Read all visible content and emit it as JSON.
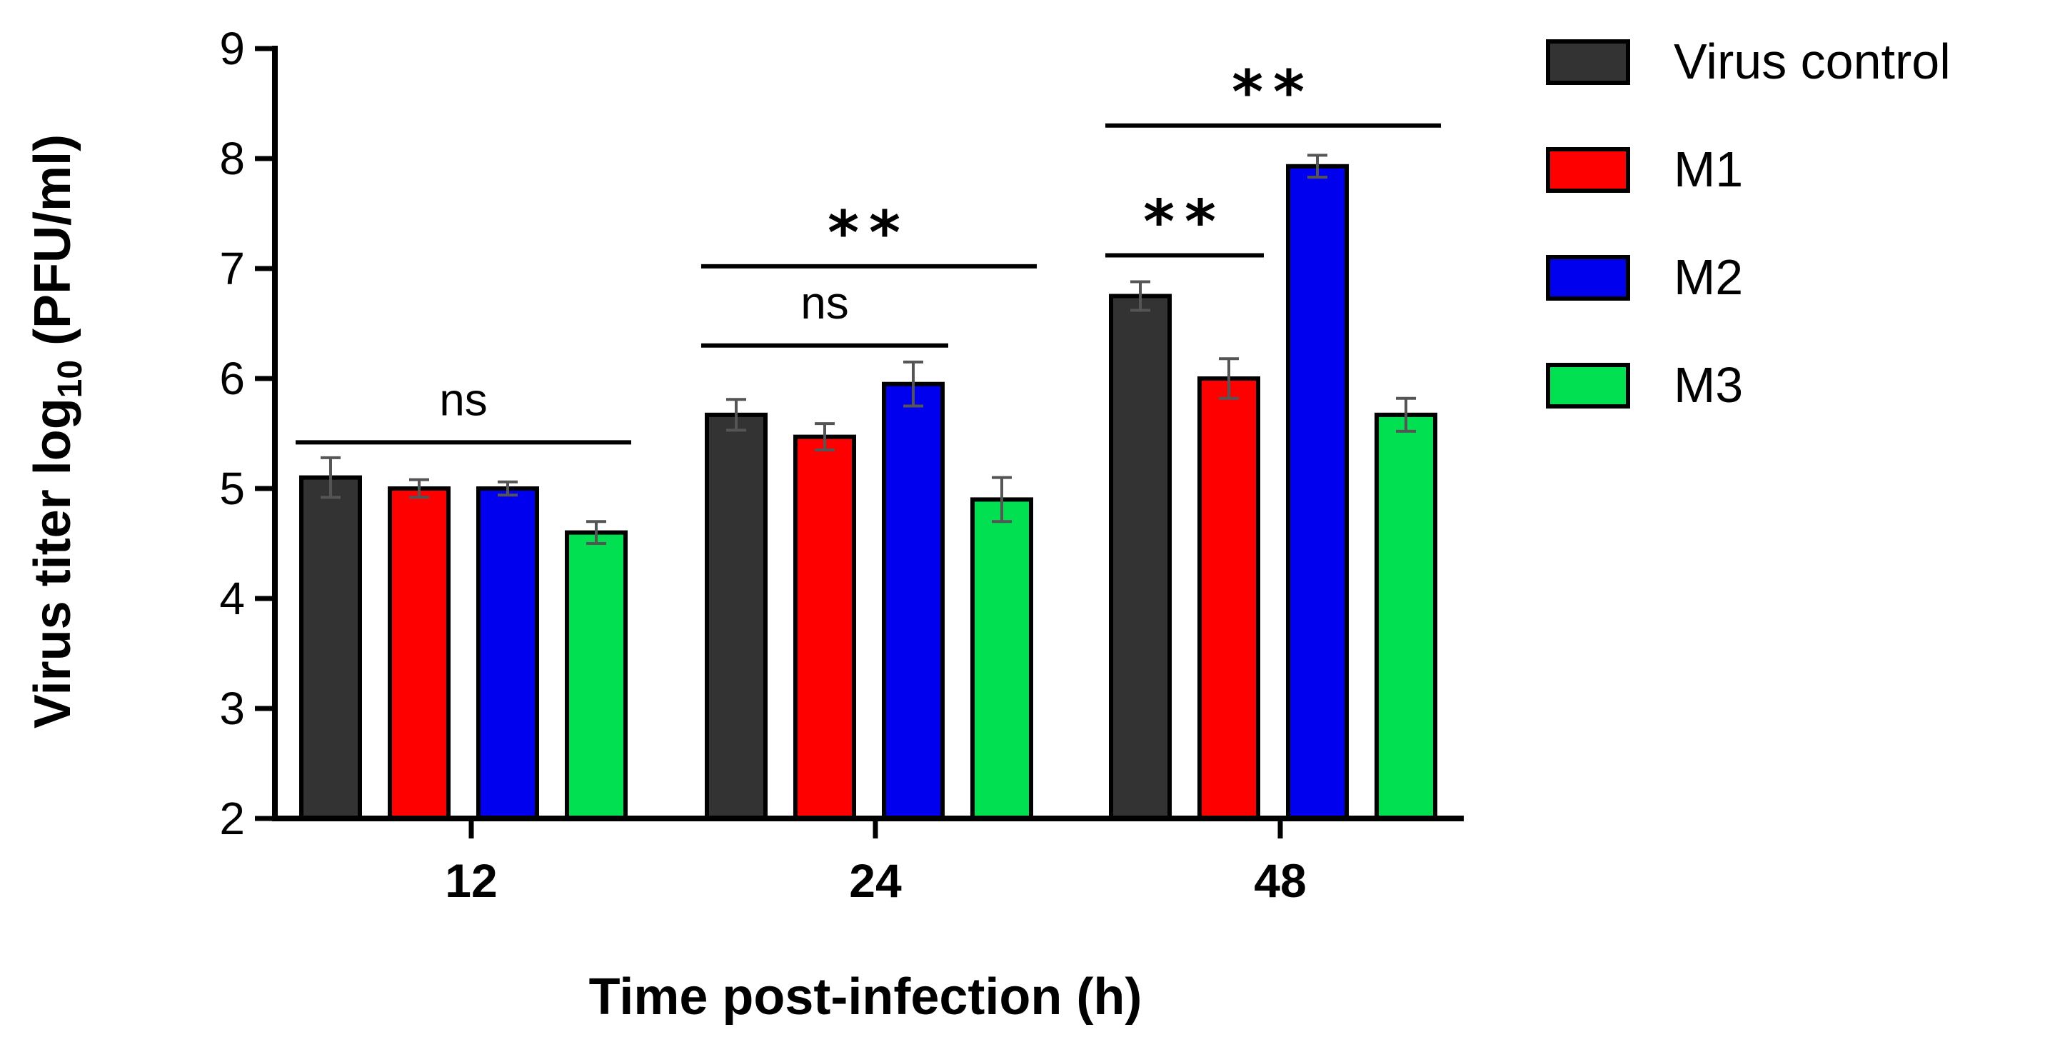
{
  "chart_data": {
    "type": "bar",
    "title": "",
    "xlabel": "Time post-infection (h)",
    "ylabel": {
      "prefix": "Virus titer log",
      "subscript": "10",
      "suffix": " (PFU/ml)"
    },
    "ylim": [
      2,
      9
    ],
    "yticks": [
      "2",
      "3",
      "4",
      "5",
      "6",
      "7",
      "8",
      "9"
    ],
    "categories": [
      "12",
      "24",
      "48"
    ],
    "series": [
      {
        "name": "Virus control",
        "color": "#333333",
        "values": [
          5.1,
          5.67,
          6.75
        ],
        "errors": [
          0.18,
          0.14,
          0.13
        ]
      },
      {
        "name": "M1",
        "color": "#ff0000",
        "values": [
          5.0,
          5.47,
          6.0
        ],
        "errors": [
          0.08,
          0.12,
          0.18
        ]
      },
      {
        "name": "M2",
        "color": "#0000ee",
        "values": [
          5.0,
          5.95,
          7.93
        ],
        "errors": [
          0.06,
          0.2,
          0.1
        ]
      },
      {
        "name": "M3",
        "color": "#00e050",
        "values": [
          4.6,
          4.9,
          5.67
        ],
        "errors": [
          0.1,
          0.2,
          0.15
        ]
      }
    ],
    "legend_position": "right",
    "significance": [
      {
        "category": 0,
        "from_series": 0,
        "to_series": 3,
        "y": 5.42,
        "label": "ns",
        "kind": "text"
      },
      {
        "category": 1,
        "from_series": 0,
        "to_series": 2,
        "y": 6.3,
        "label": "ns",
        "kind": "text"
      },
      {
        "category": 1,
        "from_series": 0,
        "to_series": 3,
        "y": 7.02,
        "label": "**",
        "kind": "stars"
      },
      {
        "category": 2,
        "from_series": 0,
        "to_series": 1,
        "y": 7.12,
        "label": "**",
        "kind": "stars"
      },
      {
        "category": 2,
        "from_series": 0,
        "to_series": 3,
        "y": 8.3,
        "label": "**",
        "kind": "stars"
      }
    ]
  }
}
